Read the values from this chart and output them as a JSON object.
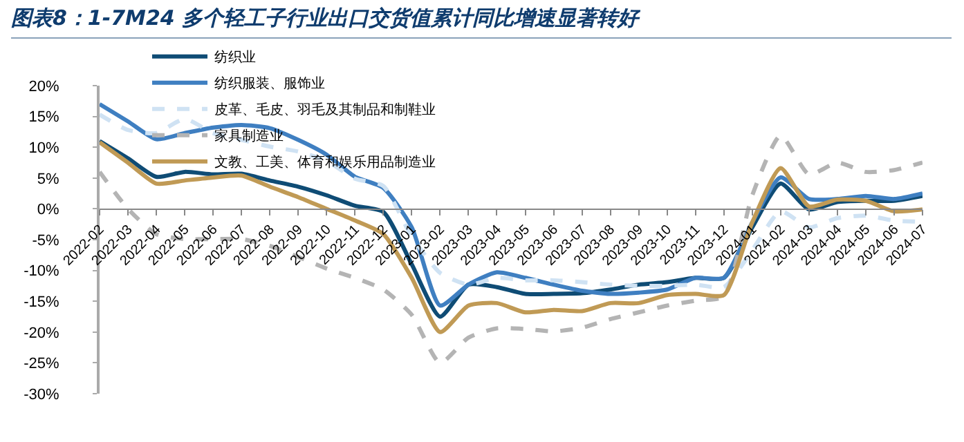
{
  "chart_data": {
    "type": "line",
    "title": "图表8：1-7M24 多个轻工子行业出口交货值累计同比增速显著转好",
    "categories": [
      "2022-02",
      "2022-03",
      "2022-04",
      "2022-05",
      "2022-06",
      "2022-07",
      "2022-08",
      "2022-09",
      "2022-10",
      "2022-11",
      "2022-12",
      "2023-01",
      "2023-02",
      "2023-03",
      "2023-04",
      "2023-05",
      "2023-06",
      "2023-07",
      "2023-08",
      "2023-09",
      "2023-10",
      "2023-11",
      "2023-12",
      "2024-01",
      "2024-02",
      "2024-03",
      "2024-04",
      "2024-05",
      "2024-06",
      "2024-07"
    ],
    "series": [
      {
        "name": "纺织业",
        "color": "#0f4c75",
        "line_style": "solid",
        "values": [
          11.0,
          8.2,
          5.2,
          6.0,
          5.6,
          5.7,
          4.6,
          3.6,
          2.2,
          0.5,
          -0.5,
          -9,
          -17.5,
          -12.3,
          -12.7,
          -13.8,
          -13.8,
          -13.7,
          -13.1,
          -12.3,
          -11.9,
          -11.2,
          -11.2,
          -3,
          4.1,
          -0.1,
          1.1,
          1.3,
          1.3,
          2.1
        ]
      },
      {
        "name": "纺织服装、服饰业",
        "color": "#3f7fc1",
        "line_style": "solid",
        "values": [
          17.0,
          14.2,
          11.3,
          12.3,
          13.2,
          13.6,
          13.1,
          11.2,
          8.8,
          5.2,
          3.4,
          -3,
          -15.7,
          -12.3,
          -10.3,
          -11.2,
          -12.3,
          -13.3,
          -13.8,
          -13.6,
          -13.1,
          -11.2,
          -11.2,
          -2.2,
          5.1,
          1.6,
          1.6,
          2.1,
          1.6,
          2.5
        ]
      },
      {
        "name": "皮革、毛皮、羽毛及其制品和制鞋业",
        "color": "#cfe2f3",
        "line_style": "dashed",
        "values": [
          15.3,
          12.8,
          12.3,
          14.6,
          12.3,
          11.2,
          10.1,
          9.3,
          7.8,
          4.9,
          3.7,
          -4.5,
          -10.4,
          -12.3,
          -11.2,
          -11.6,
          -11.6,
          -11.9,
          -12.3,
          -12.5,
          -12.5,
          -12.3,
          -12.7,
          -6.7,
          -0.4,
          -3.0,
          -1.5,
          -1.1,
          -1.9,
          -2.1
        ]
      },
      {
        "name": "家具制造业",
        "color": "#b4b4b4",
        "line_style": "dashed",
        "values": [
          6.0,
          0,
          -4.1,
          -4.9,
          -4.9,
          -4.9,
          -6.0,
          -7.8,
          -9.7,
          -11.2,
          -13.1,
          -17.2,
          -25,
          -20.9,
          -19.4,
          -19.5,
          -19.9,
          -19.3,
          -17.9,
          -16.8,
          -15.7,
          -14.9,
          -14.2,
          2.2,
          11.9,
          5.6,
          7.5,
          6.0,
          6.3,
          7.5
        ]
      },
      {
        "name": "文教、工美、体育和娱乐用品制造业",
        "color": "#c09a55",
        "line_style": "solid",
        "values": [
          10.8,
          7.5,
          4.1,
          4.6,
          5.1,
          5.4,
          3.6,
          1.9,
          0,
          -1.9,
          -4.1,
          -11.2,
          -20,
          -15.7,
          -15.3,
          -16.8,
          -16.4,
          -16.6,
          -15.3,
          -15.3,
          -14.0,
          -13.8,
          -14.0,
          -2.2,
          6.6,
          0.4,
          1.5,
          1.3,
          -0.4,
          -0.1
        ]
      }
    ],
    "ylim": [
      -30,
      20
    ],
    "yticks": [
      {
        "value": -30,
        "label": "-30%"
      },
      {
        "value": -25,
        "label": "-25%"
      },
      {
        "value": -20,
        "label": "-20%"
      },
      {
        "value": -15,
        "label": "-15%"
      },
      {
        "value": -10,
        "label": "-10%"
      },
      {
        "value": -5,
        "label": "-5%"
      },
      {
        "value": 0,
        "label": "0%"
      },
      {
        "value": 5,
        "label": "5%"
      },
      {
        "value": 10,
        "label": "10%"
      },
      {
        "value": 15,
        "label": "15%"
      },
      {
        "value": 20,
        "label": "20%"
      }
    ],
    "grid": false,
    "legend": "top",
    "marker": "none"
  }
}
